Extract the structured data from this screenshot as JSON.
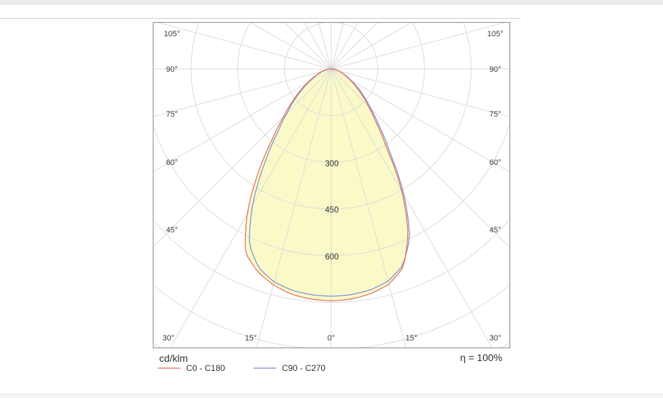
{
  "chart": {
    "units_label": "cd/klm",
    "efficiency_label": "η = 100%",
    "legend": [
      {
        "label": "C0 - C180"
      },
      {
        "label": "C90 - C270"
      }
    ]
  },
  "chart_data": {
    "type": "polar-photometric",
    "description": "Luminous intensity distribution curve, polar diagram, intensity in cd/klm vs gamma angle from downward vertical",
    "units": "cd/klm",
    "efficiency": "η = 100%",
    "radial_ticks": [
      "300",
      "450",
      "600"
    ],
    "radial_grid_step": 150,
    "radial_grid_max": 1050,
    "angle_grid_step_deg": 15,
    "side_angle_labels": [
      "105°",
      "90°",
      "75°",
      "60°",
      "45°"
    ],
    "bottom_angle_labels": [
      "30°",
      "15°",
      "0°",
      "15°",
      "30°"
    ],
    "gamma_deg": [
      0,
      5,
      10,
      15,
      20,
      25,
      30,
      35,
      40,
      45,
      50,
      55,
      60,
      65,
      70,
      75,
      80,
      85,
      90
    ],
    "series": [
      {
        "name": "C0 - C180",
        "color": "#e06c5e",
        "legend_color": "#efa39c",
        "right_cd_per_klm": [
          745,
          742,
          733,
          716,
          678,
          585,
          455,
          310,
          225,
          168,
          128,
          95,
          70,
          50,
          36,
          24,
          15,
          8,
          4
        ],
        "left_cd_per_klm": [
          745,
          742,
          735,
          718,
          692,
          652,
          540,
          410,
          292,
          215,
          162,
          120,
          86,
          61,
          43,
          29,
          18,
          10,
          5
        ]
      },
      {
        "name": "C90 - C270",
        "color": "#7c89d6",
        "legend_color": "#aab3e6",
        "right_cd_per_klm": [
          730,
          728,
          721,
          706,
          672,
          598,
          468,
          330,
          240,
          180,
          138,
          103,
          75,
          53,
          38,
          26,
          16,
          9,
          4
        ],
        "left_cd_per_klm": [
          730,
          728,
          722,
          708,
          680,
          622,
          505,
          375,
          268,
          200,
          152,
          112,
          80,
          57,
          40,
          27,
          17,
          9,
          5
        ]
      }
    ],
    "fill_color": "#fafac9",
    "grid_color": "#dbdbdb",
    "frame_color": "#8a8a8a",
    "legend_position": "bottom-left"
  }
}
